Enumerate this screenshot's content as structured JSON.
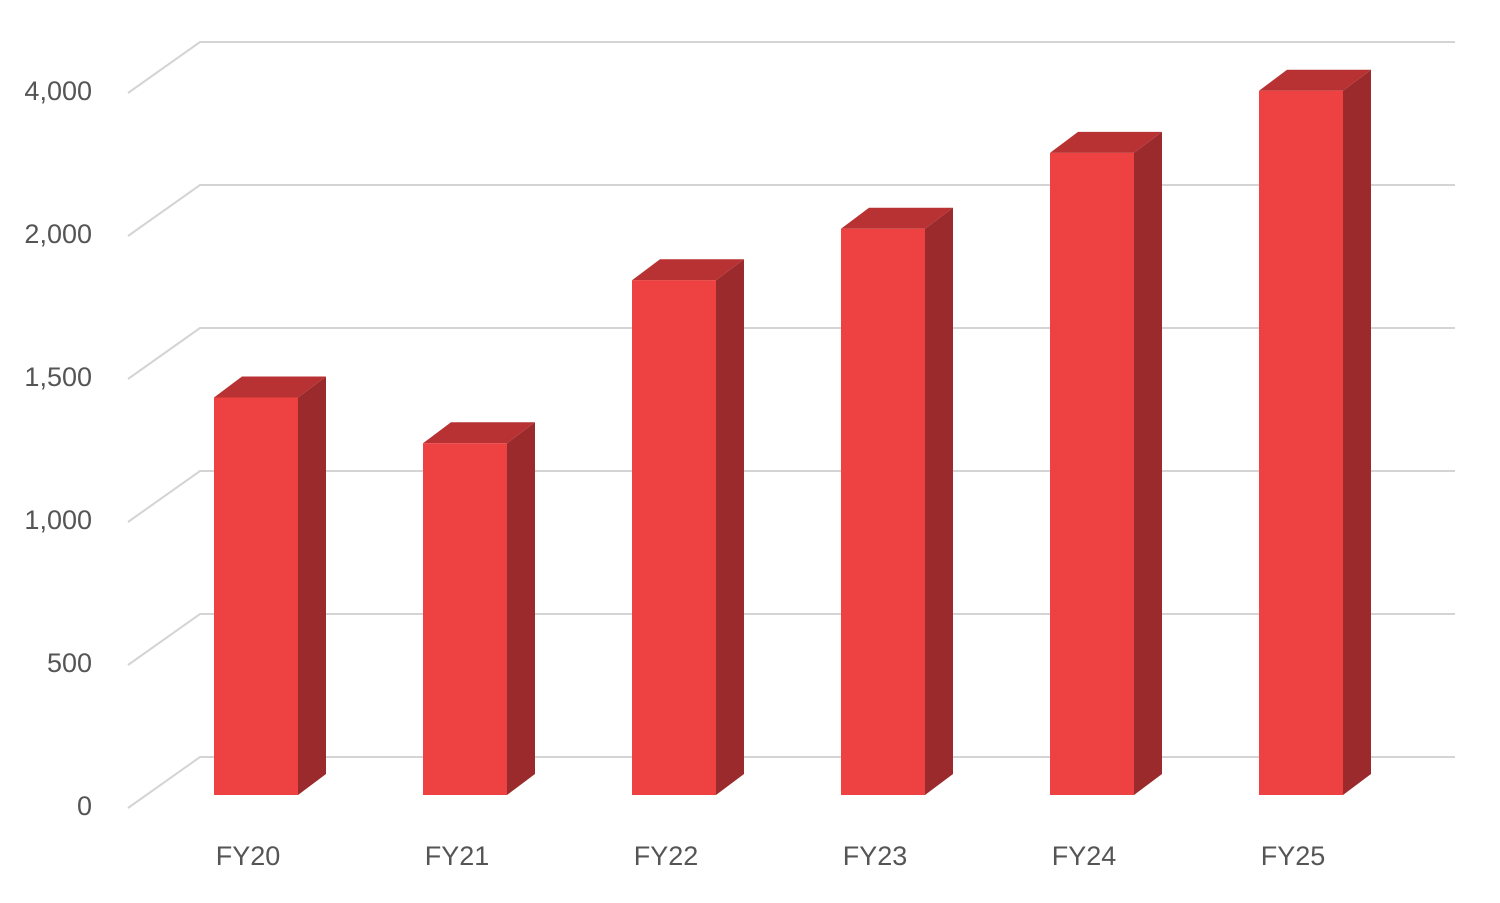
{
  "chart_data": {
    "type": "bar3d",
    "categories": [
      "FY20",
      "FY21",
      "FY22",
      "FY23",
      "FY24",
      "FY25"
    ],
    "values": [
      1390,
      1230,
      1800,
      1980,
      2980,
      3850
    ],
    "color": "#ee4242",
    "side_color": "#9a2a2b",
    "top_color": "#b83234",
    "ylim": [
      0,
      4000
    ],
    "yticks": [
      0,
      500,
      {
        "value": 1000,
        "label": "1,000"
      },
      {
        "value": 1500,
        "label": "1,500"
      },
      {
        "value": 2000,
        "label": "2,000"
      },
      {
        "value": 4000,
        "label": "4,000"
      }
    ],
    "grid": true
  }
}
